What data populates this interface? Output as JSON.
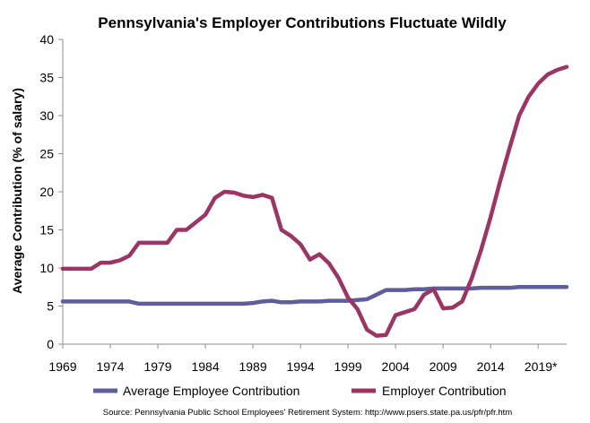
{
  "chart_data": {
    "type": "line",
    "title": "Pennsylvania's Employer Contributions Fluctuate Wildly",
    "ylabel": "Average Contribution (% of salary)",
    "xlabel": "",
    "ylim": [
      0,
      40
    ],
    "yticks": [
      "0",
      "5",
      "10",
      "15",
      "20",
      "25",
      "30",
      "35",
      "40"
    ],
    "xticks": [
      {
        "year": 1969,
        "label": "1969"
      },
      {
        "year": 1974,
        "label": "1974"
      },
      {
        "year": 1979,
        "label": "1979"
      },
      {
        "year": 1984,
        "label": "1984"
      },
      {
        "year": 1989,
        "label": "1989"
      },
      {
        "year": 1994,
        "label": "1994"
      },
      {
        "year": 1999,
        "label": "1999"
      },
      {
        "year": 2004,
        "label": "2004"
      },
      {
        "year": 2009,
        "label": "2009"
      },
      {
        "year": 2014,
        "label": "2014"
      },
      {
        "year": 2019,
        "label": "2019*"
      }
    ],
    "x": [
      1969,
      1970,
      1971,
      1972,
      1973,
      1974,
      1975,
      1976,
      1977,
      1978,
      1979,
      1980,
      1981,
      1982,
      1983,
      1984,
      1985,
      1986,
      1987,
      1988,
      1989,
      1990,
      1991,
      1992,
      1993,
      1994,
      1995,
      1996,
      1997,
      1998,
      1999,
      2000,
      2001,
      2002,
      2003,
      2004,
      2005,
      2006,
      2007,
      2008,
      2009,
      2010,
      2011,
      2012,
      2013,
      2014,
      2015,
      2016,
      2017,
      2018,
      2019,
      2020,
      2021,
      2022
    ],
    "grid": false,
    "legend_position": "bottom",
    "series": [
      {
        "name": "Average Employee Contribution",
        "color": "#5e5e9c",
        "values": [
          5.6,
          5.6,
          5.6,
          5.6,
          5.6,
          5.6,
          5.6,
          5.6,
          5.3,
          5.3,
          5.3,
          5.3,
          5.3,
          5.3,
          5.3,
          5.3,
          5.3,
          5.3,
          5.3,
          5.3,
          5.4,
          5.6,
          5.7,
          5.5,
          5.5,
          5.6,
          5.6,
          5.6,
          5.7,
          5.7,
          5.7,
          5.8,
          5.9,
          6.5,
          7.1,
          7.1,
          7.1,
          7.2,
          7.2,
          7.3,
          7.3,
          7.3,
          7.3,
          7.3,
          7.4,
          7.4,
          7.4,
          7.4,
          7.5,
          7.5,
          7.5,
          7.5,
          7.5,
          7.5
        ]
      },
      {
        "name": "Employer Contribution",
        "color": "#9b3565",
        "values": [
          9.9,
          9.9,
          9.9,
          9.9,
          10.7,
          10.7,
          11.0,
          11.6,
          13.3,
          13.3,
          13.3,
          13.3,
          15.0,
          15.0,
          16.0,
          17.0,
          19.2,
          20.0,
          19.9,
          19.5,
          19.3,
          19.6,
          19.2,
          15.0,
          14.2,
          13.1,
          11.1,
          11.8,
          10.6,
          8.7,
          6.1,
          4.6,
          1.9,
          1.1,
          1.2,
          3.8,
          4.2,
          4.6,
          6.5,
          7.2,
          4.7,
          4.8,
          5.6,
          8.6,
          12.4,
          16.7,
          21.4,
          25.8,
          30.0,
          32.5,
          34.2,
          35.4,
          36.0,
          36.4
        ]
      }
    ]
  },
  "source": "Source: Pennsylvania Public School Employees' Retirement System: http://www.psers.state.pa.us/pfr/pfr.htm"
}
